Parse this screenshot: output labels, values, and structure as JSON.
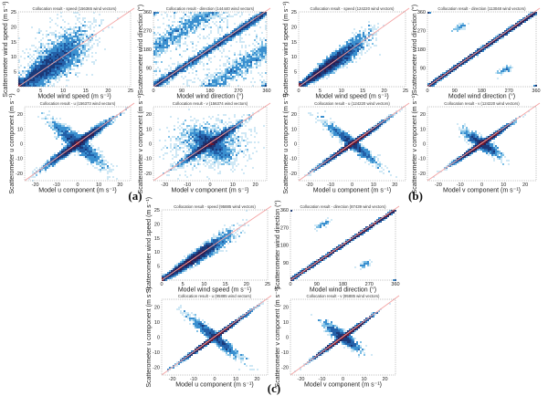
{
  "panels": [
    {
      "label": "(a)",
      "plots": [
        {
          "kind": "speed",
          "title": "Collocation result - speed (156365 wind vectors)",
          "vectors": 156365,
          "xlabel": "Model wind speed (m s⁻¹)",
          "ylabel": "Scatterometer wind speed (m s⁻¹)"
        },
        {
          "kind": "direction",
          "title": "Collocation result - direction (144440 wind vectors)",
          "vectors": 144440,
          "xlabel": "Model wind direction (°)",
          "ylabel": "Scatterometer wind direction (°)"
        },
        {
          "kind": "u",
          "title": "Collocation result - u (156373 wind vectors)",
          "vectors": 156373,
          "xlabel": "Model u component (m s⁻¹)",
          "ylabel": "Scatterometer u component (m s⁻¹)"
        },
        {
          "kind": "v",
          "title": "Collocation result - v (156374 wind vectors)",
          "vectors": 156374,
          "xlabel": "Model v component (m s⁻¹)",
          "ylabel": "Scatterometer v component (m s⁻¹)"
        }
      ]
    },
    {
      "label": "(b)",
      "plots": [
        {
          "kind": "speed",
          "title": "Collocation result - speed (124220 wind vectors)",
          "vectors": 124220,
          "xlabel": "Model wind speed (m s⁻¹)",
          "ylabel": "Scatterometer wind speed (m s⁻¹)"
        },
        {
          "kind": "direction",
          "title": "Collocation result - direction (113048 wind vectors)",
          "vectors": 113048,
          "xlabel": "Model wind direction (°)",
          "ylabel": "Scatterometer wind direction (°)"
        },
        {
          "kind": "u",
          "title": "Collocation result - u (124220 wind vectors)",
          "vectors": 124220,
          "xlabel": "Model u component (m s⁻¹)",
          "ylabel": "Scatterometer u component (m s⁻¹)"
        },
        {
          "kind": "v",
          "title": "Collocation result - v (124220 wind vectors)",
          "vectors": 124220,
          "xlabel": "Model v component (m s⁻¹)",
          "ylabel": "Scatterometer v component (m s⁻¹)"
        }
      ]
    },
    {
      "label": "(c)",
      "plots": [
        {
          "kind": "speed",
          "title": "Collocation result - speed (95885 wind vectors)",
          "vectors": 95885,
          "xlabel": "Model wind speed (m s⁻¹)",
          "ylabel": "Scatterometer wind speed (m s⁻¹)"
        },
        {
          "kind": "direction",
          "title": "Collocation result - direction (87439 wind vectors)",
          "vectors": 87439,
          "xlabel": "Model wind direction (°)",
          "ylabel": "Scatterometer wind direction (°)"
        },
        {
          "kind": "u",
          "title": "Collocation result - u (95885 wind vectors)",
          "vectors": 95885,
          "xlabel": "Model u component (m s⁻¹)",
          "ylabel": "Scatterometer u component (m s⁻¹)"
        },
        {
          "kind": "v",
          "title": "Collocation result - v (95885 wind vectors)",
          "vectors": 95885,
          "xlabel": "Model v component (m s⁻¹)",
          "ylabel": "Scatterometer v component (m s⁻¹)"
        }
      ]
    }
  ],
  "chart_data": {
    "type": "heatmap",
    "description_axes": {
      "speed": {
        "xlim": [
          0,
          25
        ],
        "ylim": [
          0,
          25
        ],
        "xticks": [
          0,
          5,
          10,
          15,
          20,
          25
        ],
        "yticks": [
          5,
          10,
          15,
          20,
          25
        ]
      },
      "direction": {
        "xlim": [
          0,
          360
        ],
        "ylim": [
          0,
          360
        ],
        "xticks": [
          0,
          90,
          180,
          270,
          360
        ],
        "yticks": [
          90,
          180,
          270,
          360
        ]
      },
      "u": {
        "xlim": [
          -25,
          25
        ],
        "ylim": [
          -25,
          25
        ],
        "xticks": [
          -20,
          -10,
          0,
          10,
          20
        ],
        "yticks": [
          -20,
          -10,
          0,
          10,
          20
        ]
      },
      "v": {
        "xlim": [
          -25,
          25
        ],
        "ylim": [
          -25,
          25
        ],
        "xticks": [
          -20,
          -10,
          0,
          10,
          20
        ],
        "yticks": [
          -20,
          -10,
          0,
          10,
          20
        ]
      }
    },
    "reference_line": "y = x",
    "colors": {
      "diagonal": "#f4a3a3",
      "low": "#cfe8f5",
      "mid": "#3a8fcf",
      "high": "#1a3a7a",
      "peak": "#6b1830"
    }
  }
}
